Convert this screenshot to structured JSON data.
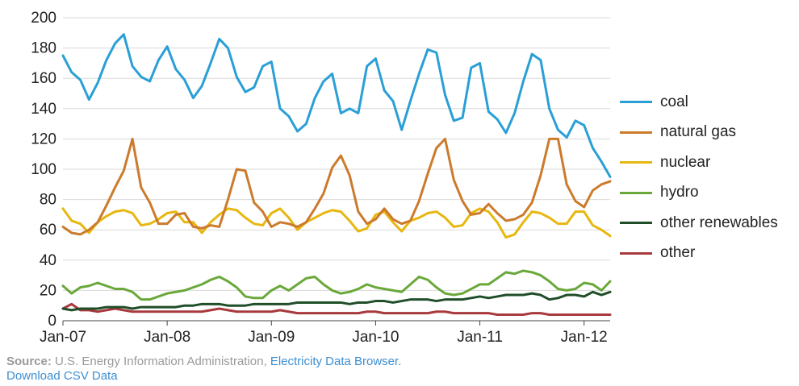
{
  "chart_data": {
    "type": "line",
    "title": "",
    "xlabel": "",
    "ylabel": "",
    "ylim": [
      0,
      200
    ],
    "yticks": [
      0,
      20,
      40,
      60,
      80,
      100,
      120,
      140,
      160,
      180,
      200
    ],
    "xtick_labels": [
      "Jan-07",
      "Jan-08",
      "Jan-09",
      "Jan-10",
      "Jan-11",
      "Jan-12"
    ],
    "x": [
      "2007-01",
      "2007-02",
      "2007-03",
      "2007-04",
      "2007-05",
      "2007-06",
      "2007-07",
      "2007-08",
      "2007-09",
      "2007-10",
      "2007-11",
      "2007-12",
      "2008-01",
      "2008-02",
      "2008-03",
      "2008-04",
      "2008-05",
      "2008-06",
      "2008-07",
      "2008-08",
      "2008-09",
      "2008-10",
      "2008-11",
      "2008-12",
      "2009-01",
      "2009-02",
      "2009-03",
      "2009-04",
      "2009-05",
      "2009-06",
      "2009-07",
      "2009-08",
      "2009-09",
      "2009-10",
      "2009-11",
      "2009-12",
      "2010-01",
      "2010-02",
      "2010-03",
      "2010-04",
      "2010-05",
      "2010-06",
      "2010-07",
      "2010-08",
      "2010-09",
      "2010-10",
      "2010-11",
      "2010-12",
      "2011-01",
      "2011-02",
      "2011-03",
      "2011-04",
      "2011-05",
      "2011-06",
      "2011-07",
      "2011-08",
      "2011-09",
      "2011-10",
      "2011-11",
      "2011-12",
      "2012-01",
      "2012-02",
      "2012-03",
      "2012-04"
    ],
    "legend_position": "right",
    "grid": "horizontal",
    "series": [
      {
        "name": "coal",
        "color": "#2a9fd6",
        "values": [
          175,
          164,
          159,
          146,
          157,
          172,
          183,
          189,
          168,
          161,
          158,
          172,
          181,
          166,
          159,
          147,
          155,
          170,
          186,
          180,
          161,
          151,
          154,
          168,
          171,
          140,
          135,
          125,
          130,
          147,
          158,
          163,
          137,
          140,
          137,
          168,
          173,
          152,
          145,
          126,
          145,
          163,
          179,
          177,
          149,
          132,
          134,
          167,
          170,
          138,
          133,
          124,
          137,
          158,
          176,
          172,
          140,
          126,
          121,
          132,
          129,
          114,
          105,
          95
        ]
      },
      {
        "name": "natural gas",
        "color": "#cc7a2c",
        "values": [
          62,
          58,
          57,
          60,
          65,
          76,
          88,
          99,
          120,
          88,
          78,
          64,
          64,
          70,
          71,
          62,
          61,
          63,
          62,
          80,
          100,
          99,
          78,
          72,
          62,
          65,
          64,
          62,
          65,
          74,
          84,
          101,
          109,
          96,
          72,
          64,
          67,
          74,
          67,
          64,
          66,
          79,
          97,
          114,
          120,
          93,
          79,
          70,
          71,
          77,
          71,
          66,
          67,
          70,
          78,
          96,
          120,
          120,
          90,
          79,
          75,
          86,
          90,
          92
        ]
      },
      {
        "name": "nuclear",
        "color": "#e7b710",
        "values": [
          74,
          66,
          64,
          58,
          65,
          69,
          72,
          73,
          71,
          63,
          64,
          67,
          71,
          72,
          65,
          65,
          58,
          65,
          70,
          74,
          73,
          68,
          64,
          63,
          71,
          74,
          68,
          60,
          65,
          68,
          71,
          73,
          72,
          66,
          59,
          61,
          70,
          72,
          65,
          59,
          66,
          68,
          71,
          72,
          68,
          62,
          63,
          71,
          74,
          72,
          65,
          55,
          57,
          65,
          72,
          71,
          68,
          64,
          64,
          72,
          72,
          63,
          60,
          56
        ]
      },
      {
        "name": "hydro",
        "color": "#6aa83b",
        "values": [
          23,
          18,
          22,
          23,
          25,
          23,
          21,
          21,
          19,
          14,
          14,
          16,
          18,
          19,
          20,
          22,
          24,
          27,
          29,
          26,
          22,
          16,
          15,
          15,
          20,
          23,
          20,
          24,
          28,
          29,
          24,
          20,
          18,
          19,
          21,
          24,
          22,
          21,
          20,
          19,
          24,
          29,
          27,
          22,
          18,
          17,
          18,
          21,
          24,
          24,
          28,
          32,
          31,
          33,
          32,
          30,
          26,
          21,
          20,
          21,
          25,
          24,
          20,
          26
        ]
      },
      {
        "name": "other renewables",
        "color": "#1f4e29",
        "values": [
          8,
          7,
          8,
          8,
          8,
          9,
          9,
          9,
          8,
          9,
          9,
          9,
          9,
          9,
          10,
          10,
          11,
          11,
          11,
          10,
          10,
          10,
          11,
          11,
          11,
          11,
          11,
          12,
          12,
          12,
          12,
          12,
          12,
          11,
          12,
          12,
          13,
          13,
          12,
          13,
          14,
          14,
          14,
          13,
          14,
          14,
          14,
          15,
          16,
          15,
          16,
          17,
          17,
          17,
          18,
          17,
          14,
          15,
          17,
          17,
          16,
          19,
          17,
          19
        ]
      },
      {
        "name": "other",
        "color": "#a83a3e",
        "values": [
          8,
          11,
          7,
          7,
          6,
          7,
          8,
          7,
          6,
          6,
          6,
          6,
          6,
          6,
          6,
          6,
          6,
          7,
          8,
          7,
          6,
          6,
          6,
          6,
          6,
          7,
          6,
          5,
          5,
          5,
          5,
          5,
          5,
          5,
          5,
          6,
          6,
          5,
          5,
          5,
          5,
          5,
          5,
          6,
          6,
          5,
          5,
          5,
          5,
          5,
          4,
          4,
          4,
          4,
          5,
          5,
          4,
          4,
          4,
          4,
          4,
          4,
          4,
          4
        ]
      }
    ]
  },
  "footer": {
    "source_label": "Source:",
    "source_text": " U.S. Energy Information Administration, ",
    "link_browser": "Electricity Data Browser.",
    "link_download": "Download CSV Data"
  }
}
